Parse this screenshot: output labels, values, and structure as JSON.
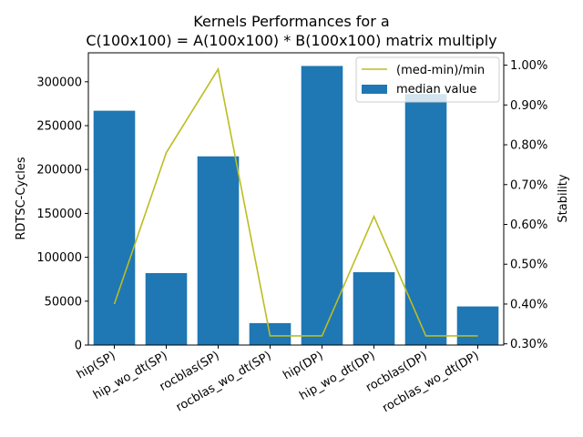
{
  "chart_data": {
    "type": "bar",
    "title": "Kernels Performances for a",
    "subtitle": "C(100x100) = A(100x100) * B(100x100) matrix multiply",
    "categories": [
      "hip(SP)",
      "hip_wo_dt(SP)",
      "rocblas(SP)",
      "rocblas_wo_dt(SP)",
      "hip(DP)",
      "hip_wo_dt(DP)",
      "rocblas(DP)",
      "rocblas_wo_dt(DP)"
    ],
    "series": [
      {
        "name": "median value",
        "axis": "left",
        "kind": "bar",
        "color": "#1f77b4",
        "values": [
          267000,
          82000,
          215000,
          25000,
          318000,
          83000,
          286000,
          44000
        ]
      },
      {
        "name": "(med-min)/min",
        "axis": "right",
        "kind": "line",
        "color": "#bcbd22",
        "values": [
          0.004,
          0.0078,
          0.0099,
          0.0032,
          0.0032,
          0.0062,
          0.0032,
          0.0032
        ]
      }
    ],
    "ylabel": "RDTSC-Cycles",
    "y2label": "Stability",
    "ylim": [
      0,
      333000
    ],
    "y2lim": [
      0.00297,
      0.01031
    ],
    "yticks": [
      0,
      50000,
      100000,
      150000,
      200000,
      250000,
      300000
    ],
    "yticklabels": [
      "0",
      "50000",
      "100000",
      "150000",
      "200000",
      "250000",
      "300000"
    ],
    "y2ticks": [
      0.003,
      0.004,
      0.005,
      0.006,
      0.007,
      0.008,
      0.009,
      0.01
    ],
    "y2ticklabels": [
      "0.30%",
      "0.40%",
      "0.50%",
      "0.60%",
      "0.70%",
      "0.80%",
      "0.90%",
      "1.00%"
    ],
    "xlabel": "",
    "grid": false,
    "legend": "top-right"
  }
}
